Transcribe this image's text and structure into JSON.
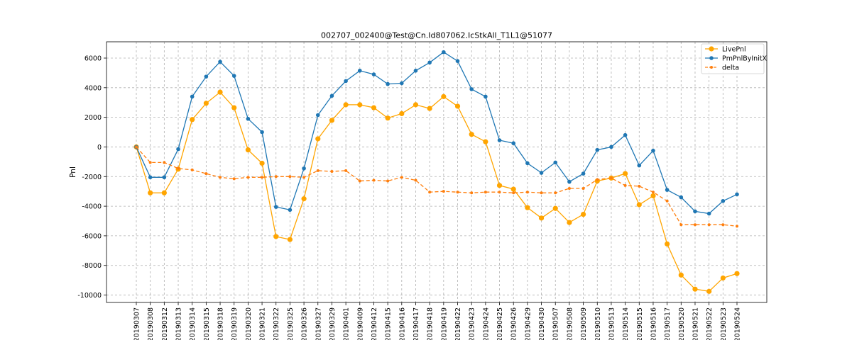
{
  "chart_data": {
    "type": "line",
    "title": "002707_002400@Test@Cn.Id807062.IcStkAll_T1L1@51077",
    "xlabel": "",
    "ylabel": "Pnl",
    "ylim": [
      -10500,
      7100
    ],
    "yticks": [
      -10000,
      -8000,
      -6000,
      -4000,
      -2000,
      0,
      2000,
      4000,
      6000
    ],
    "grid": true,
    "legend_position": "top-right",
    "x": [
      "20190307",
      "20190308",
      "20190312",
      "20190313",
      "20190314",
      "20190315",
      "20190318",
      "20190319",
      "20190320",
      "20190321",
      "20190322",
      "20190325",
      "20190326",
      "20190327",
      "20190329",
      "20190401",
      "20190409",
      "20190412",
      "20190415",
      "20190416",
      "20190417",
      "20190418",
      "20190419",
      "20190422",
      "20190423",
      "20190424",
      "20190425",
      "20190426",
      "20190429",
      "20190430",
      "20190507",
      "20190508",
      "20190509",
      "20190510",
      "20190513",
      "20190514",
      "20190515",
      "20190516",
      "20190517",
      "20190520",
      "20190521",
      "20190522",
      "20190523",
      "20190524"
    ],
    "series": [
      {
        "name": "LivePnl",
        "color": "#ffa500",
        "style": "solid",
        "marker": "large-circle",
        "values": [
          0,
          -3100,
          -3100,
          -1500,
          1850,
          2950,
          3700,
          2650,
          -200,
          -1100,
          -6050,
          -6250,
          -3500,
          550,
          1800,
          2850,
          2850,
          2650,
          1950,
          2250,
          2850,
          2600,
          3400,
          2750,
          850,
          350,
          -2600,
          -2850,
          -4100,
          -4800,
          -4150,
          -5100,
          -4550,
          -2300,
          -2100,
          -1800,
          -3900,
          -3300,
          -6550,
          -8650,
          -9600,
          -9750,
          -8850,
          -8550
        ]
      },
      {
        "name": "PmPnlByInitX",
        "color": "#1f77b4",
        "style": "solid",
        "marker": "circle",
        "values": [
          0,
          -2050,
          -2050,
          -150,
          3400,
          4750,
          5750,
          4800,
          1900,
          1000,
          -4050,
          -4250,
          -1450,
          2150,
          3450,
          4450,
          5150,
          4900,
          4250,
          4300,
          5150,
          5700,
          6400,
          5800,
          3900,
          3400,
          450,
          250,
          -1100,
          -1750,
          -1050,
          -2350,
          -1800,
          -200,
          0,
          800,
          -1250,
          -250,
          -2900,
          -3400,
          -4350,
          -4500,
          -3650,
          -3200
        ]
      },
      {
        "name": "delta",
        "color": "#ff7f0e",
        "style": "dashed",
        "marker": "small-circle",
        "values": [
          0,
          -1050,
          -1050,
          -1450,
          -1550,
          -1800,
          -2050,
          -2150,
          -2050,
          -2050,
          -2000,
          -2000,
          -2050,
          -1600,
          -1650,
          -1600,
          -2300,
          -2250,
          -2300,
          -2050,
          -2250,
          -3050,
          -3000,
          -3050,
          -3100,
          -3050,
          -3050,
          -3100,
          -3050,
          -3100,
          -3100,
          -2800,
          -2800,
          -2200,
          -2100,
          -2600,
          -2650,
          -3050,
          -3650,
          -5250,
          -5250,
          -5250,
          -5250,
          -5350
        ]
      }
    ]
  }
}
